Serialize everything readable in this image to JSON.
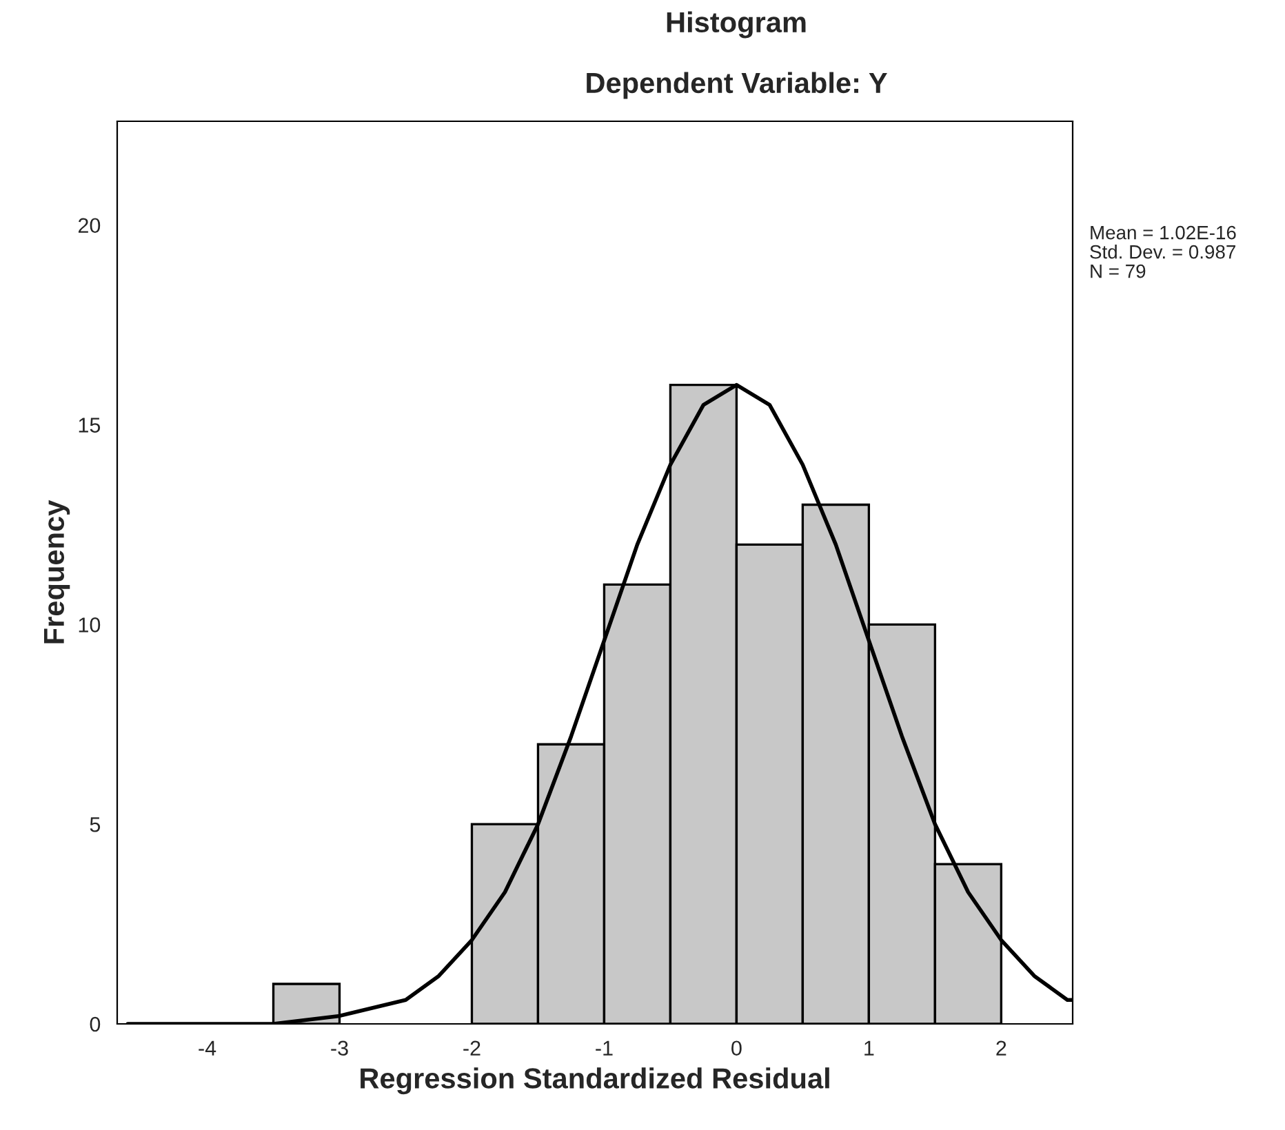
{
  "chart_data": {
    "type": "histogram",
    "title": "Histogram",
    "subtitle": "Dependent Variable: Y",
    "xlabel": "Regression Standardized Residual",
    "ylabel": "Frequency",
    "bins": [
      -3.5,
      -3,
      -2.5,
      -2,
      -1.5,
      -1,
      -0.5,
      0,
      0.5,
      1,
      1.5,
      2
    ],
    "values": [
      1,
      0,
      0,
      5,
      7,
      11,
      16,
      12,
      13,
      10,
      4
    ],
    "color": "#c8c8c8",
    "series": [
      {
        "type": "line",
        "color": "#000000",
        "x": [
          -4.6,
          -4,
          -3.5,
          -3,
          -2.5,
          -2.25,
          -2,
          -1.75,
          -1.5,
          -1.25,
          -1,
          -0.75,
          -0.5,
          -0.25,
          0,
          0.25,
          0.5,
          0.75,
          1,
          1.25,
          1.5,
          1.75,
          2,
          2.25,
          2.5,
          2.54
        ],
        "values": [
          0,
          0,
          0,
          0.2,
          0.6,
          1.2,
          2.1,
          3.3,
          5.0,
          7.2,
          9.6,
          12.0,
          14.0,
          15.5,
          16.0,
          15.5,
          14.0,
          12.0,
          9.6,
          7.2,
          5.0,
          3.3,
          2.1,
          1.2,
          0.6,
          0.6
        ]
      }
    ],
    "annotations": [
      "Mean = 1.02E-16",
      "Std. Dev. = 0.987",
      "N = 79"
    ],
    "xlim": [
      -4.68,
      2.54
    ],
    "ylim": [
      0,
      22.6
    ],
    "xticks": [
      -4,
      -3,
      -2,
      -1,
      0,
      1,
      2
    ],
    "yticks": [
      0,
      5,
      10,
      15,
      20
    ],
    "grid": false,
    "legend": false
  }
}
